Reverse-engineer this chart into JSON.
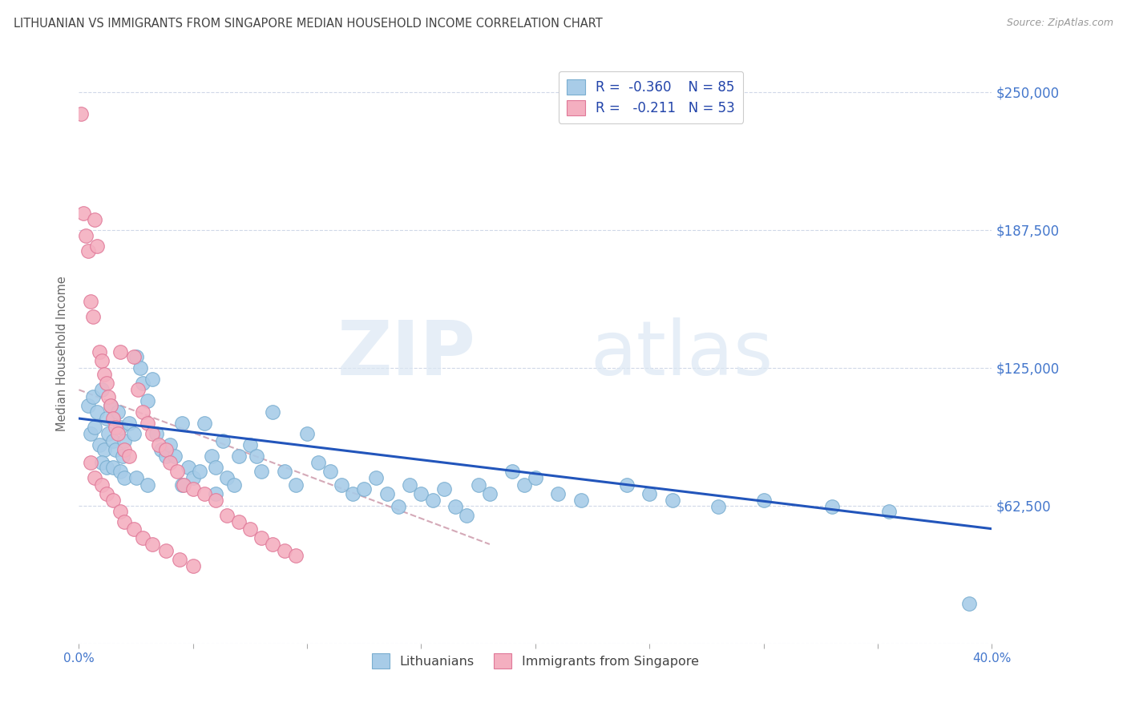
{
  "title": "LITHUANIAN VS IMMIGRANTS FROM SINGAPORE MEDIAN HOUSEHOLD INCOME CORRELATION CHART",
  "source": "Source: ZipAtlas.com",
  "ylabel": "Median Household Income",
  "watermark_zip": "ZIP",
  "watermark_atlas": "atlas",
  "xlim": [
    0.0,
    0.4
  ],
  "ylim": [
    0,
    262500
  ],
  "yticks": [
    0,
    62500,
    125000,
    187500,
    250000
  ],
  "ytick_labels": [
    "",
    "$62,500",
    "$125,000",
    "$187,500",
    "$250,000"
  ],
  "xticks": [
    0.0,
    0.05,
    0.1,
    0.15,
    0.2,
    0.25,
    0.3,
    0.35,
    0.4
  ],
  "xtick_labels": [
    "0.0%",
    "",
    "",
    "",
    "",
    "",
    "",
    "",
    "40.0%"
  ],
  "series1_color": "#a8cce8",
  "series2_color": "#f4afc0",
  "series1_edge": "#7aaed0",
  "series2_edge": "#e07898",
  "regression1_color": "#2255bb",
  "regression2_color": "#d0a0b0",
  "title_color": "#444444",
  "axis_color": "#4477cc",
  "grid_color": "#d0d8e8",
  "background_color": "#ffffff",
  "legend_R1": "R =  -0.360",
  "legend_N1": "N = 85",
  "legend_R2": "R =   -0.211",
  "legend_N2": "N = 53",
  "legend_label1": "Lithuanians",
  "legend_label2": "Immigrants from Singapore",
  "blue_line_x0": 0.0,
  "blue_line_y0": 102000,
  "blue_line_x1": 0.4,
  "blue_line_y1": 52000,
  "pink_line_x0": 0.0,
  "pink_line_y0": 115000,
  "pink_line_x1": 0.18,
  "pink_line_y1": 45000,
  "lithuanians_x": [
    0.004,
    0.005,
    0.006,
    0.007,
    0.008,
    0.009,
    0.01,
    0.011,
    0.012,
    0.013,
    0.014,
    0.015,
    0.016,
    0.017,
    0.018,
    0.019,
    0.02,
    0.022,
    0.024,
    0.025,
    0.027,
    0.028,
    0.03,
    0.032,
    0.034,
    0.036,
    0.038,
    0.04,
    0.042,
    0.045,
    0.048,
    0.05,
    0.053,
    0.055,
    0.058,
    0.06,
    0.063,
    0.065,
    0.068,
    0.07,
    0.075,
    0.078,
    0.08,
    0.085,
    0.09,
    0.095,
    0.1,
    0.105,
    0.11,
    0.115,
    0.12,
    0.125,
    0.13,
    0.135,
    0.14,
    0.145,
    0.15,
    0.155,
    0.16,
    0.165,
    0.17,
    0.175,
    0.18,
    0.19,
    0.195,
    0.2,
    0.21,
    0.22,
    0.24,
    0.25,
    0.26,
    0.28,
    0.3,
    0.33,
    0.355,
    0.39,
    0.01,
    0.012,
    0.015,
    0.018,
    0.02,
    0.025,
    0.03,
    0.045,
    0.06
  ],
  "lithuanians_y": [
    108000,
    95000,
    112000,
    98000,
    105000,
    90000,
    115000,
    88000,
    102000,
    95000,
    108000,
    92000,
    88000,
    105000,
    98000,
    85000,
    92000,
    100000,
    95000,
    130000,
    125000,
    118000,
    110000,
    120000,
    95000,
    88000,
    85000,
    90000,
    85000,
    100000,
    80000,
    75000,
    78000,
    100000,
    85000,
    80000,
    92000,
    75000,
    72000,
    85000,
    90000,
    85000,
    78000,
    105000,
    78000,
    72000,
    95000,
    82000,
    78000,
    72000,
    68000,
    70000,
    75000,
    68000,
    62000,
    72000,
    68000,
    65000,
    70000,
    62000,
    58000,
    72000,
    68000,
    78000,
    72000,
    75000,
    68000,
    65000,
    72000,
    68000,
    65000,
    62000,
    65000,
    62000,
    60000,
    18000,
    82000,
    80000,
    80000,
    78000,
    75000,
    75000,
    72000,
    72000,
    68000
  ],
  "singapore_x": [
    0.001,
    0.002,
    0.003,
    0.004,
    0.005,
    0.006,
    0.007,
    0.008,
    0.009,
    0.01,
    0.011,
    0.012,
    0.013,
    0.014,
    0.015,
    0.016,
    0.017,
    0.018,
    0.02,
    0.022,
    0.024,
    0.026,
    0.028,
    0.03,
    0.032,
    0.035,
    0.038,
    0.04,
    0.043,
    0.046,
    0.05,
    0.055,
    0.06,
    0.065,
    0.07,
    0.075,
    0.08,
    0.085,
    0.09,
    0.095,
    0.005,
    0.007,
    0.01,
    0.012,
    0.015,
    0.018,
    0.02,
    0.024,
    0.028,
    0.032,
    0.038,
    0.044,
    0.05
  ],
  "singapore_y": [
    240000,
    195000,
    185000,
    178000,
    155000,
    148000,
    192000,
    180000,
    132000,
    128000,
    122000,
    118000,
    112000,
    108000,
    102000,
    98000,
    95000,
    132000,
    88000,
    85000,
    130000,
    115000,
    105000,
    100000,
    95000,
    90000,
    88000,
    82000,
    78000,
    72000,
    70000,
    68000,
    65000,
    58000,
    55000,
    52000,
    48000,
    45000,
    42000,
    40000,
    82000,
    75000,
    72000,
    68000,
    65000,
    60000,
    55000,
    52000,
    48000,
    45000,
    42000,
    38000,
    35000
  ]
}
